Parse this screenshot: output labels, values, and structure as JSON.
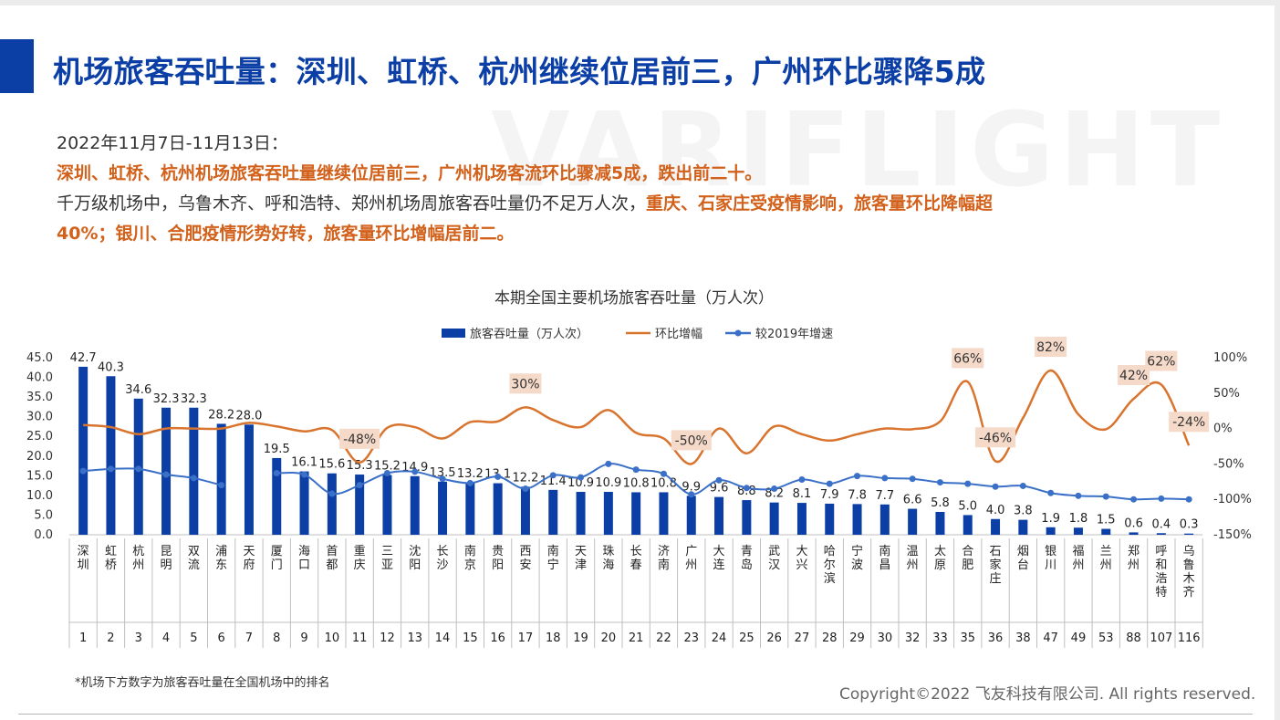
{
  "header": {
    "title": "机场旅客吞吐量：深圳、虹桥、杭州继续位居前三，广州环比骤降5成",
    "watermark": "VARIFLIGHT"
  },
  "summary": {
    "date_line": "2022年11月7日-11月13日：",
    "highlight_line": "深圳、虹桥、杭州机场旅客吞吐量继续位居前三，广州机场客流环比骤减5成，跌出前二十。",
    "line3_normal": "千万级机场中，乌鲁木齐、呼和浩特、郑州机场周旅客吞吐量仍不足万人次，",
    "line3_highlight": "重庆、石家庄受疫情影响，旅客量环比降幅超",
    "line4_highlight": "40%；银川、合肥疫情形势好转，旅客量环比增幅居前二。"
  },
  "footer": {
    "footnote": "*机场下方数字为旅客吞吐量在全国机场中的排名",
    "copyright": "Copyright©2022 飞友科技有限公司. All rights reserved."
  },
  "colors": {
    "bar": "#0b3fa6",
    "mom_line": "#d9742f",
    "vs2019_line": "#3a70c8",
    "label_bg": "#f5d9c9",
    "title": "#0b3fa6"
  },
  "chart_data": {
    "type": "bar",
    "title": "本期全国主要机场旅客吞吐量（万人次）",
    "legend": [
      "旅客吞吐量（万人次）",
      "环比增幅",
      "较2019年增速"
    ],
    "legend_position": "top",
    "categories": [
      "深圳",
      "虹桥",
      "杭州",
      "昆明",
      "双流",
      "浦东",
      "天府",
      "厦门",
      "海口",
      "首都",
      "重庆",
      "三亚",
      "沈阳",
      "长沙",
      "南京",
      "贵阳",
      "西安",
      "南宁",
      "天津",
      "珠海",
      "长春",
      "济南",
      "广州",
      "大连",
      "青岛",
      "武汉",
      "大兴",
      "哈尔滨",
      "宁波",
      "南昌",
      "温州",
      "太原",
      "合肥",
      "石家庄",
      "烟台",
      "银川",
      "福州",
      "兰州",
      "郑州",
      "呼和浩特",
      "乌鲁木齐"
    ],
    "ranks": [
      "1",
      "2",
      "3",
      "4",
      "5",
      "6",
      "7",
      "8",
      "9",
      "10",
      "11",
      "12",
      "13",
      "14",
      "15",
      "16",
      "17",
      "18",
      "19",
      "20",
      "21",
      "22",
      "23",
      "24",
      "25",
      "26",
      "27",
      "28",
      "29",
      "30",
      "32",
      "33",
      "35",
      "36",
      "38",
      "47",
      "49",
      "53",
      "88",
      "107",
      "116"
    ],
    "series": [
      {
        "name": "旅客吞吐量（万人次）",
        "type": "bar",
        "axis": "left",
        "values": [
          42.7,
          40.3,
          34.6,
          32.3,
          32.3,
          28.2,
          28.0,
          19.5,
          16.1,
          15.6,
          15.3,
          15.2,
          14.9,
          13.5,
          13.2,
          13.1,
          12.2,
          11.4,
          10.9,
          10.9,
          10.8,
          10.8,
          9.9,
          9.6,
          8.8,
          8.2,
          8.1,
          7.9,
          7.8,
          7.7,
          6.6,
          5.8,
          5.0,
          4.0,
          3.8,
          1.9,
          1.8,
          1.5,
          0.6,
          0.4,
          0.3
        ],
        "labels": [
          "42.7",
          "40.3",
          "34.6",
          "32.3",
          "32.3",
          "28.2",
          "28.0",
          "19.5",
          "16.1",
          "15.6",
          "15.3",
          "15.2",
          "14.9",
          "13.5",
          "13.2",
          "13.1",
          "12.2",
          "11.4",
          "10.9",
          "10.9",
          "10.8",
          "10.8",
          "9.9",
          "9.6",
          "8.8",
          "8.2",
          "8.1",
          "7.9",
          "7.8",
          "7.7",
          "6.6",
          "5.8",
          "5.0",
          "4.0",
          "3.8",
          "1.9",
          "1.8",
          "1.5",
          "0.6",
          "0.4",
          "0.3"
        ]
      },
      {
        "name": "环比增幅",
        "type": "line",
        "axis": "right",
        "values": [
          5,
          2,
          -8,
          0,
          0,
          0,
          8,
          3,
          -4,
          -2,
          -48,
          1,
          2,
          -14,
          9,
          10,
          30,
          12,
          2,
          26,
          -6,
          -14,
          -50,
          0,
          -35,
          3,
          -8,
          -17,
          -8,
          0,
          -1,
          10,
          66,
          -46,
          15,
          82,
          20,
          -1,
          42,
          62,
          -24
        ]
      },
      {
        "name": "较2019年增速",
        "type": "line",
        "axis": "right",
        "values": [
          -60,
          -57,
          -57,
          -65,
          -70,
          -80,
          null,
          -63,
          -65,
          -92,
          -80,
          -63,
          -61,
          -71,
          -77,
          -68,
          -85,
          -66,
          -69,
          -50,
          -58,
          -64,
          -93,
          -73,
          -84,
          -85,
          -72,
          -78,
          -67,
          -70,
          -71,
          -76,
          -78,
          -82,
          -81,
          -91,
          -95,
          -96,
          -100,
          -99,
          -100
        ]
      }
    ],
    "callouts": [
      {
        "series": "环比增幅",
        "index": 10,
        "text": "-48%"
      },
      {
        "series": "环比增幅",
        "index": 16,
        "text": "30%"
      },
      {
        "series": "环比增幅",
        "index": 22,
        "text": "-50%"
      },
      {
        "series": "环比增幅",
        "index": 32,
        "text": "66%"
      },
      {
        "series": "环比增幅",
        "index": 33,
        "text": "-46%"
      },
      {
        "series": "环比增幅",
        "index": 35,
        "text": "82%"
      },
      {
        "series": "环比增幅",
        "index": 38,
        "text": "42%"
      },
      {
        "series": "环比增幅",
        "index": 39,
        "text": "62%"
      },
      {
        "series": "环比增幅",
        "index": 40,
        "text": "-24%"
      }
    ],
    "y_left": {
      "min": 0,
      "max": 45,
      "ticks": [
        "0.0",
        "5.0",
        "10.0",
        "15.0",
        "20.0",
        "25.0",
        "30.0",
        "35.0",
        "40.0",
        "45.0"
      ]
    },
    "y_right": {
      "min": -150,
      "max": 100,
      "ticks": [
        "-150%",
        "-100%",
        "-50%",
        "0%",
        "50%",
        "100%"
      ]
    },
    "grid": false
  }
}
